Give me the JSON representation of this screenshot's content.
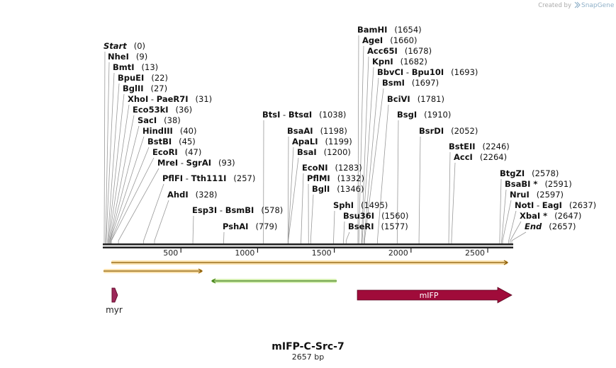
{
  "credit": {
    "prefix": "Created by",
    "brand": "SnapGene"
  },
  "plasmid": {
    "name": "mIFP-C-Src-7",
    "length_label": "2657 bp",
    "length": 2657
  },
  "ruler": {
    "ticks": [
      "500",
      "1000",
      "1500",
      "2000",
      "2500"
    ],
    "tick_values": [
      500,
      1000,
      1500,
      2000,
      2500
    ]
  },
  "sites": [
    {
      "name": "Start",
      "pos": "(0)",
      "bp": 0,
      "italic": true
    },
    {
      "name": "NheI",
      "pos": "(9)",
      "bp": 9
    },
    {
      "name": "BmtI",
      "pos": "(13)",
      "bp": 13
    },
    {
      "name": "BpuEI",
      "pos": "(22)",
      "bp": 22
    },
    {
      "name": "BglII",
      "pos": "(27)",
      "bp": 27
    },
    {
      "name": "XhoI",
      "name2": "PaeR7I",
      "pos": "(31)",
      "bp": 31
    },
    {
      "name": "Eco53kI",
      "pos": "(36)",
      "bp": 36
    },
    {
      "name": "SacI",
      "pos": "(38)",
      "bp": 38
    },
    {
      "name": "HindIII",
      "pos": "(40)",
      "bp": 40
    },
    {
      "name": "BstBI",
      "pos": "(45)",
      "bp": 45
    },
    {
      "name": "EcoRI",
      "pos": "(47)",
      "bp": 47
    },
    {
      "name": "MreI",
      "name2": "SgrAI",
      "pos": "(93)",
      "bp": 93
    },
    {
      "name": "PflFI",
      "name2": "Tth111I",
      "pos": "(257)",
      "bp": 257
    },
    {
      "name": "AhdI",
      "pos": "(328)",
      "bp": 328
    },
    {
      "name": "Esp3I",
      "name2": "BsmBI",
      "pos": "(578)",
      "bp": 578
    },
    {
      "name": "PshAI",
      "pos": "(779)",
      "bp": 779
    },
    {
      "name": "BtsI",
      "name2": "BtsαI",
      "pos": "(1038)",
      "bp": 1038
    },
    {
      "name": "BsaAI",
      "pos": "(1198)",
      "bp": 1198
    },
    {
      "name": "ApaLI",
      "pos": "(1199)",
      "bp": 1199
    },
    {
      "name": "BsaI",
      "pos": "(1200)",
      "bp": 1200
    },
    {
      "name": "EcoNI",
      "pos": "(1283)",
      "bp": 1283
    },
    {
      "name": "PflMI",
      "pos": "(1332)",
      "bp": 1332
    },
    {
      "name": "BglI",
      "pos": "(1346)",
      "bp": 1346
    },
    {
      "name": "SphI",
      "pos": "(1495)",
      "bp": 1495
    },
    {
      "name": "Bsu36I",
      "pos": "(1560)",
      "bp": 1560
    },
    {
      "name": "BseRI",
      "pos": "(1577)",
      "bp": 1577
    },
    {
      "name": "BamHI",
      "pos": "(1654)",
      "bp": 1654
    },
    {
      "name": "AgeI",
      "pos": "(1660)",
      "bp": 1660
    },
    {
      "name": "Acc65I",
      "pos": "(1678)",
      "bp": 1678
    },
    {
      "name": "KpnI",
      "pos": "(1682)",
      "bp": 1682
    },
    {
      "name": "BbvCI",
      "name2": "Bpu10I",
      "pos": "(1693)",
      "bp": 1693
    },
    {
      "name": "BsmI",
      "pos": "(1697)",
      "bp": 1697
    },
    {
      "name": "BciVI",
      "pos": "(1781)",
      "bp": 1781
    },
    {
      "name": "BsgI",
      "pos": "(1910)",
      "bp": 1910
    },
    {
      "name": "BsrDI",
      "pos": "(2052)",
      "bp": 2052
    },
    {
      "name": "BstEII",
      "pos": "(2246)",
      "bp": 2246
    },
    {
      "name": "AccI",
      "pos": "(2264)",
      "bp": 2264
    },
    {
      "name": "BtgZI",
      "pos": "(2578)",
      "bp": 2578
    },
    {
      "name": "BsaBI *",
      "pos": "(2591)",
      "bp": 2591
    },
    {
      "name": "NruI",
      "pos": "(2597)",
      "bp": 2597
    },
    {
      "name": "NotI",
      "name2": "EagI",
      "pos": "(2637)",
      "bp": 2637
    },
    {
      "name": "XbaI *",
      "pos": "(2647)",
      "bp": 2647
    },
    {
      "name": "End",
      "pos": "(2657)",
      "bp": 2657,
      "italic": true
    }
  ],
  "features": [
    {
      "name": "mIFP",
      "label": "mIFP",
      "start_bp": 1650,
      "end_bp": 2657,
      "direction": "forward",
      "color": "#a00b3a",
      "show_label": true
    },
    {
      "name": "myr",
      "label": "myr",
      "start_bp": 9,
      "end_bp": 48,
      "direction": "forward",
      "color": "#9b2759",
      "show_label": true
    },
    {
      "name": "orange-line-1",
      "start_bp": 40,
      "end_bp": 2657,
      "direction": "forward",
      "color": "#f0a830",
      "show_label": false
    },
    {
      "name": "orange-line-2",
      "start_bp": 0,
      "end_bp": 640,
      "direction": "forward",
      "color": "#f0a830",
      "show_label": false
    },
    {
      "name": "green-line",
      "start_bp": 700,
      "end_bp": 1520,
      "direction": "reverse",
      "color": "#8ec63f",
      "show_label": false
    }
  ]
}
